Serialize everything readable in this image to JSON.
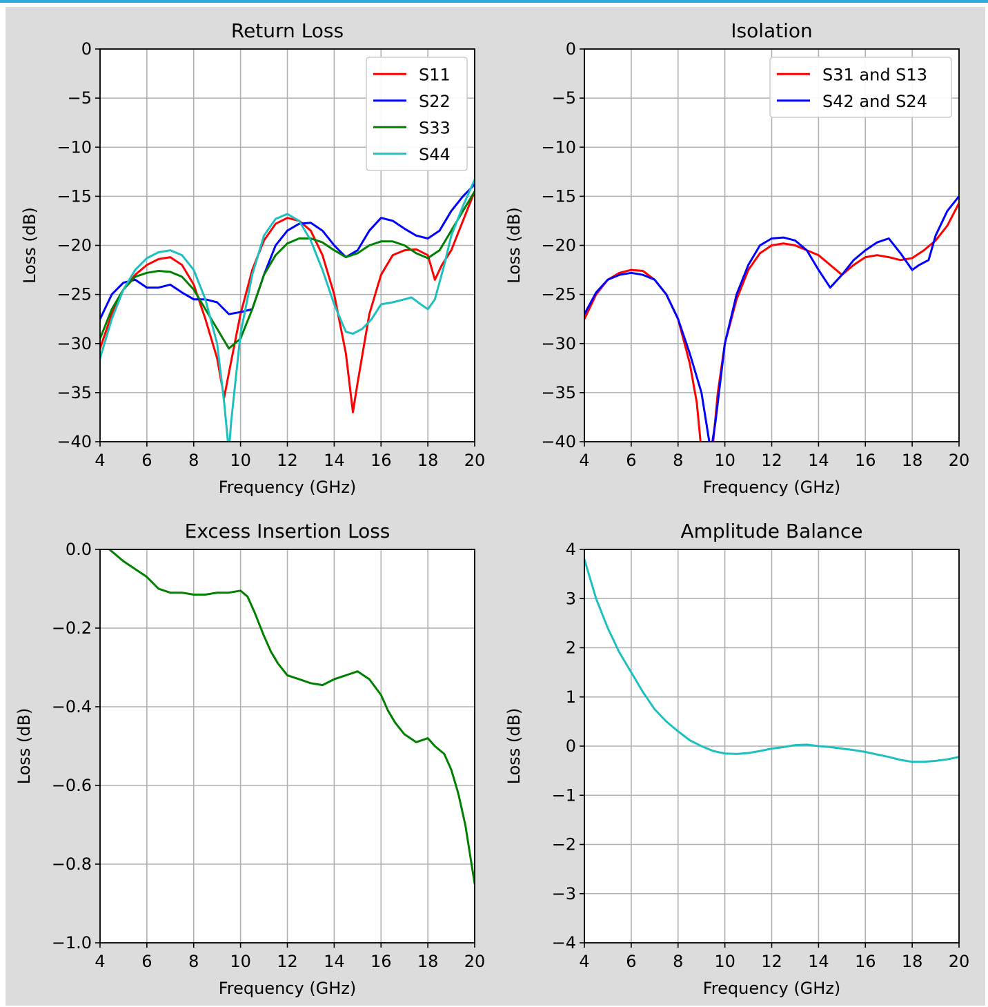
{
  "colors": {
    "figure_background": "#dcdcdc",
    "top_border": "#31a8dc",
    "red": "#ff0000",
    "blue": "#0000ff",
    "green": "#008000",
    "cyan": "#1fbfbf",
    "grid": "#b0b0b0"
  },
  "chart_data": [
    {
      "type": "line",
      "title": "Return Loss",
      "xlabel": "Frequency (GHz)",
      "ylabel": "Loss (dB)",
      "xlim": [
        4,
        20
      ],
      "ylim": [
        -40,
        0
      ],
      "xticks": [
        4,
        6,
        8,
        10,
        12,
        14,
        16,
        18,
        20
      ],
      "xtick_labels": [
        "4",
        "6",
        "8",
        "10",
        "12",
        "14",
        "16",
        "18",
        "20"
      ],
      "yticks": [
        0,
        -5,
        -10,
        -15,
        -20,
        -25,
        -30,
        -35,
        -40
      ],
      "ytick_labels": [
        "0",
        "−5",
        "−10",
        "−15",
        "−20",
        "−25",
        "−30",
        "−35",
        "−40"
      ],
      "grid": true,
      "legend_position": "top-right",
      "series": [
        {
          "name": "S11",
          "color": "#ff0000",
          "x": [
            4,
            4.5,
            5,
            5.5,
            6,
            6.5,
            7,
            7.5,
            8,
            8.5,
            9,
            9.3,
            9.5,
            10,
            10.5,
            11,
            11.5,
            12,
            12.5,
            13,
            13.5,
            14,
            14.5,
            14.8,
            15,
            15.5,
            16,
            16.5,
            17,
            17.5,
            18,
            18.3,
            18.6,
            19,
            19.5,
            20
          ],
          "y": [
            -30.5,
            -27,
            -24.5,
            -23,
            -22,
            -21.4,
            -21.2,
            -22,
            -24,
            -27.5,
            -31.5,
            -35.5,
            -33,
            -27,
            -22.5,
            -19.5,
            -17.8,
            -17.2,
            -17.5,
            -18.5,
            -21,
            -25,
            -31,
            -37,
            -34,
            -27,
            -23,
            -21,
            -20.5,
            -20.4,
            -21,
            -23.5,
            -22,
            -20.5,
            -17.5,
            -14.5
          ]
        },
        {
          "name": "S22",
          "color": "#0000ff",
          "x": [
            4,
            4.5,
            5,
            5.5,
            6,
            6.5,
            7,
            7.5,
            8,
            8.5,
            9,
            9.5,
            10,
            10.5,
            11,
            11.5,
            12,
            12.5,
            13,
            13.5,
            14,
            14.5,
            15,
            15.5,
            16,
            16.5,
            17,
            17.5,
            18,
            18.5,
            19,
            19.5,
            20
          ],
          "y": [
            -27.5,
            -25,
            -23.8,
            -23.5,
            -24.3,
            -24.3,
            -24,
            -24.8,
            -25.5,
            -25.5,
            -25.8,
            -27,
            -26.8,
            -26.5,
            -23,
            -20,
            -18.5,
            -17.8,
            -17.7,
            -18.5,
            -20,
            -21.2,
            -20.5,
            -18.5,
            -17.2,
            -17.5,
            -18.3,
            -19,
            -19.3,
            -18.5,
            -16.5,
            -15,
            -13.8
          ]
        },
        {
          "name": "S33",
          "color": "#008000",
          "x": [
            4,
            4.5,
            5,
            5.5,
            6,
            6.5,
            7,
            7.5,
            8,
            8.5,
            9,
            9.5,
            10,
            10.5,
            11,
            11.5,
            12,
            12.5,
            13,
            13.5,
            14,
            14.5,
            15,
            15.5,
            16,
            16.5,
            17,
            17.5,
            18,
            18.5,
            19,
            19.5,
            20
          ],
          "y": [
            -29.5,
            -26.5,
            -24.5,
            -23.2,
            -22.8,
            -22.6,
            -22.7,
            -23.2,
            -24.5,
            -26.5,
            -28.5,
            -30.5,
            -29.5,
            -26.5,
            -23,
            -21,
            -19.8,
            -19.3,
            -19.3,
            -19.7,
            -20.5,
            -21.2,
            -20.8,
            -20,
            -19.6,
            -19.6,
            -20,
            -20.8,
            -21.3,
            -20.5,
            -18.5,
            -16.5,
            -14.5
          ]
        },
        {
          "name": "S44",
          "color": "#1fbfbf",
          "x": [
            4,
            4.5,
            5,
            5.5,
            6,
            6.5,
            7,
            7.5,
            8,
            8.5,
            9,
            9.3,
            9.5,
            9.6,
            10,
            10.5,
            11,
            11.5,
            12,
            12.5,
            13,
            13.5,
            14,
            14.5,
            14.8,
            15.2,
            15.6,
            16,
            16.5,
            17,
            17.3,
            17.7,
            18,
            18.3,
            18.7,
            19,
            19.5,
            20
          ],
          "y": [
            -31.5,
            -27.5,
            -24.5,
            -22.5,
            -21.3,
            -20.7,
            -20.5,
            -21,
            -22.5,
            -25.5,
            -30,
            -36,
            -41,
            -38,
            -29,
            -23,
            -19,
            -17.3,
            -16.8,
            -17.5,
            -19.5,
            -22.5,
            -26,
            -28.8,
            -29,
            -28.5,
            -27.5,
            -26,
            -25.8,
            -25.5,
            -25.3,
            -26,
            -26.5,
            -25.5,
            -22,
            -19,
            -16,
            -13.3
          ]
        }
      ]
    },
    {
      "type": "line",
      "title": "Isolation",
      "xlabel": "Frequency (GHz)",
      "ylabel": "Loss (dB)",
      "xlim": [
        4,
        20
      ],
      "ylim": [
        -40,
        0
      ],
      "xticks": [
        4,
        6,
        8,
        10,
        12,
        14,
        16,
        18,
        20
      ],
      "xtick_labels": [
        "4",
        "6",
        "8",
        "10",
        "12",
        "14",
        "16",
        "18",
        "20"
      ],
      "yticks": [
        0,
        -5,
        -10,
        -15,
        -20,
        -25,
        -30,
        -35,
        -40
      ],
      "ytick_labels": [
        "0",
        "−5",
        "−10",
        "−15",
        "−20",
        "−25",
        "−30",
        "−35",
        "−40"
      ],
      "grid": true,
      "legend_position": "top-right",
      "series": [
        {
          "name": "S31 and S13",
          "color": "#ff0000",
          "x": [
            4,
            4.5,
            5,
            5.5,
            6,
            6.5,
            7,
            7.5,
            8,
            8.5,
            8.8,
            9,
            9.5,
            9.7,
            10,
            10.5,
            11,
            11.5,
            12,
            12.5,
            13,
            13.5,
            14,
            14.5,
            15,
            15.5,
            16,
            16.5,
            17,
            17.5,
            18,
            18.5,
            19,
            19.5,
            20
          ],
          "y": [
            -27.5,
            -25,
            -23.5,
            -22.8,
            -22.5,
            -22.6,
            -23.5,
            -25,
            -27.5,
            -32,
            -36,
            -41,
            -40,
            -35,
            -30,
            -25.5,
            -22.5,
            -20.8,
            -20,
            -19.8,
            -20,
            -20.5,
            -21,
            -22,
            -23,
            -22,
            -21.2,
            -21,
            -21.2,
            -21.5,
            -21.3,
            -20.5,
            -19.5,
            -18,
            -15.7
          ]
        },
        {
          "name": "S42 and S24",
          "color": "#0000ff",
          "x": [
            4,
            4.5,
            5,
            5.5,
            6,
            6.5,
            7,
            7.5,
            8,
            8.5,
            9,
            9.2,
            9.4,
            9.6,
            10,
            10.5,
            11,
            11.5,
            12,
            12.5,
            13,
            13.5,
            14,
            14.5,
            15,
            15.5,
            16,
            16.5,
            17,
            17.5,
            18,
            18.3,
            18.7,
            19,
            19.5,
            20
          ],
          "y": [
            -27,
            -24.8,
            -23.5,
            -23,
            -22.8,
            -23,
            -23.5,
            -25,
            -27.5,
            -31,
            -35,
            -38,
            -41,
            -38,
            -30,
            -25,
            -22,
            -20,
            -19.3,
            -19.2,
            -19.5,
            -20.5,
            -22.5,
            -24.3,
            -23,
            -21.5,
            -20.5,
            -19.7,
            -19.3,
            -20.8,
            -22.5,
            -22,
            -21.5,
            -19,
            -16.5,
            -15
          ]
        }
      ]
    },
    {
      "type": "line",
      "title": "Excess Insertion Loss",
      "xlabel": "Frequency (GHz)",
      "ylabel": "Loss (dB)",
      "xlim": [
        4,
        20
      ],
      "ylim": [
        -1.0,
        0.0
      ],
      "xticks": [
        4,
        6,
        8,
        10,
        12,
        14,
        16,
        18,
        20
      ],
      "xtick_labels": [
        "4",
        "6",
        "8",
        "10",
        "12",
        "14",
        "16",
        "18",
        "20"
      ],
      "yticks": [
        0.0,
        -0.2,
        -0.4,
        -0.6,
        -0.8,
        -1.0
      ],
      "ytick_labels": [
        "0.0",
        "−0.2",
        "−0.4",
        "−0.6",
        "−0.8",
        "−1.0"
      ],
      "grid": true,
      "series": [
        {
          "color": "#008000",
          "x": [
            4.4,
            5,
            5.5,
            6,
            6.5,
            7,
            7.5,
            8,
            8.5,
            9,
            9.5,
            10,
            10.3,
            10.6,
            11,
            11.3,
            11.6,
            12,
            12.5,
            13,
            13.5,
            14,
            14.5,
            15,
            15.5,
            16,
            16.3,
            16.6,
            17,
            17.5,
            18,
            18.3,
            18.7,
            19,
            19.3,
            19.6,
            20
          ],
          "y": [
            0.0,
            -0.03,
            -0.05,
            -0.07,
            -0.1,
            -0.11,
            -0.11,
            -0.115,
            -0.115,
            -0.11,
            -0.11,
            -0.105,
            -0.12,
            -0.16,
            -0.22,
            -0.26,
            -0.29,
            -0.32,
            -0.33,
            -0.34,
            -0.345,
            -0.33,
            -0.32,
            -0.31,
            -0.33,
            -0.37,
            -0.41,
            -0.44,
            -0.47,
            -0.49,
            -0.48,
            -0.5,
            -0.52,
            -0.56,
            -0.62,
            -0.7,
            -0.85
          ]
        }
      ]
    },
    {
      "type": "line",
      "title": "Amplitude Balance",
      "xlabel": "Frequency (GHz)",
      "ylabel": "Loss (dB)",
      "xlim": [
        4,
        20
      ],
      "ylim": [
        -4,
        4
      ],
      "xticks": [
        4,
        6,
        8,
        10,
        12,
        14,
        16,
        18,
        20
      ],
      "xtick_labels": [
        "4",
        "6",
        "8",
        "10",
        "12",
        "14",
        "16",
        "18",
        "20"
      ],
      "yticks": [
        4,
        3,
        2,
        1,
        0,
        -1,
        -2,
        -3,
        -4
      ],
      "ytick_labels": [
        "4",
        "3",
        "2",
        "1",
        "0",
        "−1",
        "−2",
        "−3",
        "−4"
      ],
      "grid": true,
      "series": [
        {
          "color": "#1fbfbf",
          "x": [
            4,
            4.5,
            5,
            5.5,
            6,
            6.5,
            7,
            7.5,
            8,
            8.5,
            9,
            9.5,
            10,
            10.5,
            11,
            11.5,
            12,
            12.5,
            13,
            13.5,
            14,
            14.5,
            15,
            15.5,
            16,
            16.5,
            17,
            17.5,
            18,
            18.5,
            19,
            19.5,
            20
          ],
          "y": [
            3.8,
            3.0,
            2.4,
            1.9,
            1.5,
            1.1,
            0.75,
            0.5,
            0.3,
            0.12,
            0.0,
            -0.1,
            -0.15,
            -0.16,
            -0.14,
            -0.1,
            -0.05,
            -0.02,
            0.02,
            0.03,
            0.0,
            -0.02,
            -0.05,
            -0.08,
            -0.12,
            -0.17,
            -0.22,
            -0.28,
            -0.32,
            -0.32,
            -0.3,
            -0.27,
            -0.22
          ]
        }
      ]
    }
  ]
}
